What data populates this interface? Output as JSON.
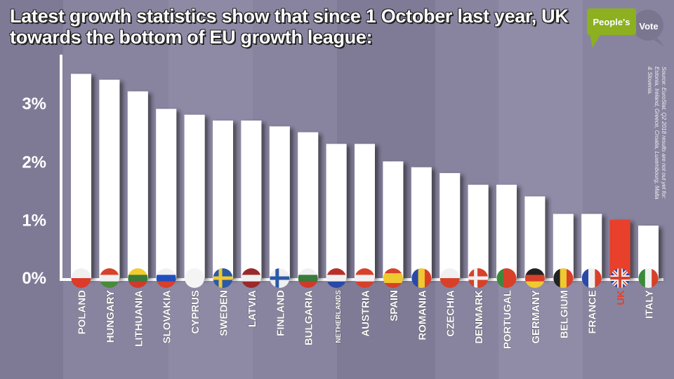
{
  "title": "Latest growth statistics show that since 1 October last year, UK towards the bottom of EU growth league:",
  "logo": {
    "line1": "People's",
    "line2": "Vote"
  },
  "source": "Source: EuroStat. Q2 2018 results are not out yet for: Estonia, Ireland, Greece, Croatia, Luxembourg, Malta & Slovenia.",
  "colors": {
    "background": "#8884a0",
    "bar": "#ffffff",
    "highlight": "#e8402a",
    "logo_green": "#8cb020",
    "logo_grey": "#7a7690"
  },
  "chart_data": {
    "type": "bar",
    "title": "Latest growth statistics show that since 1 October last year, UK towards the bottom of EU growth league:",
    "xlabel": "",
    "ylabel": "",
    "ylim": [
      0,
      3.6
    ],
    "yticks": [
      0,
      1,
      2,
      3
    ],
    "ytick_labels": [
      "0%",
      "1%",
      "2%",
      "3%"
    ],
    "grid": false,
    "highlight": "UK",
    "categories": [
      "POLAND",
      "HUNGARY",
      "LITHUANIA",
      "SLOVAKIA",
      "CYPRUS",
      "SWEDEN",
      "LATVIA",
      "FINLAND",
      "BULGARIA",
      "NETHERLANDS",
      "AUSTRIA",
      "SPAIN",
      "ROMANIA",
      "CZECHIA",
      "DENMARK",
      "PORTUGAL",
      "GERMANY",
      "BELGIUM",
      "FRANCE",
      "UK",
      "ITALY"
    ],
    "values": [
      3.5,
      3.4,
      3.2,
      2.9,
      2.8,
      2.7,
      2.7,
      2.6,
      2.5,
      2.3,
      2.3,
      2.0,
      1.9,
      1.8,
      1.6,
      1.6,
      1.4,
      1.1,
      1.1,
      1.0,
      0.9
    ],
    "flags": [
      {
        "type": "h",
        "colors": [
          "#f0f0f0",
          "#dc3a2a"
        ]
      },
      {
        "type": "h",
        "colors": [
          "#d8402a",
          "#f0f0f0",
          "#4a8a3a"
        ]
      },
      {
        "type": "h",
        "colors": [
          "#f0cc30",
          "#3a7a3a",
          "#d03a2a"
        ]
      },
      {
        "type": "h",
        "colors": [
          "#f0f0f0",
          "#2050c0",
          "#d8402a"
        ]
      },
      {
        "type": "h",
        "colors": [
          "#f4f4f4"
        ]
      },
      {
        "type": "nordic",
        "colors": [
          "#2a5aa8",
          "#f0c830"
        ]
      },
      {
        "type": "h",
        "colors": [
          "#9a2a2a",
          "#f0f0f0",
          "#9a2a2a"
        ]
      },
      {
        "type": "nordic",
        "colors": [
          "#f0f0f0",
          "#2a5aa8"
        ]
      },
      {
        "type": "h",
        "colors": [
          "#f0f0f0",
          "#3a7a3a",
          "#d03a2a"
        ]
      },
      {
        "type": "h",
        "colors": [
          "#b8302a",
          "#f0f0f0",
          "#2a4aa8"
        ]
      },
      {
        "type": "h",
        "colors": [
          "#d8402a",
          "#f0f0f0",
          "#d8402a"
        ]
      },
      {
        "type": "h",
        "colors": [
          "#d8402a",
          "#f0c830",
          "#f0c830",
          "#d8402a"
        ]
      },
      {
        "type": "v",
        "colors": [
          "#2a4aa8",
          "#f0c830",
          "#d8402a"
        ]
      },
      {
        "type": "h",
        "colors": [
          "#f0f0f0",
          "#d8402a"
        ]
      },
      {
        "type": "nordic",
        "colors": [
          "#d8402a",
          "#f0f0f0"
        ]
      },
      {
        "type": "v",
        "colors": [
          "#3a8a3a",
          "#d8402a",
          "#d8402a"
        ]
      },
      {
        "type": "h",
        "colors": [
          "#222222",
          "#d8402a",
          "#f0c830"
        ]
      },
      {
        "type": "v",
        "colors": [
          "#222222",
          "#f0c830",
          "#d8402a"
        ]
      },
      {
        "type": "v",
        "colors": [
          "#2a4aa8",
          "#f0f0f0",
          "#d8402a"
        ]
      },
      {
        "type": "uk",
        "colors": [
          "#2a4aa8",
          "#f0f0f0",
          "#d8402a"
        ]
      },
      {
        "type": "v",
        "colors": [
          "#3a8a3a",
          "#f0f0f0",
          "#d8402a"
        ]
      }
    ]
  }
}
